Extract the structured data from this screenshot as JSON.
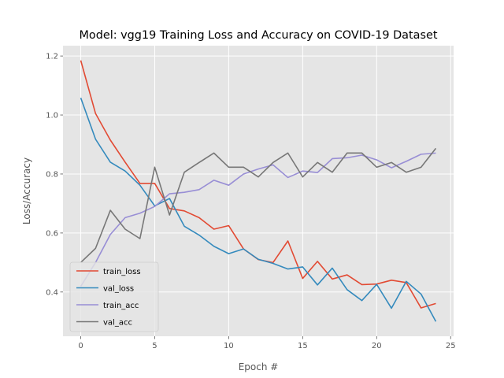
{
  "chart_data": {
    "type": "line",
    "title": "Model: vgg19 Training Loss and Accuracy on COVID-19 Dataset",
    "xlabel": "Epoch #",
    "ylabel": "Loss/Accuracy",
    "xlim": [
      -1.2,
      25.2
    ],
    "ylim": [
      0.25,
      1.235
    ],
    "xticks": [
      0,
      5,
      10,
      15,
      20,
      25
    ],
    "yticks": [
      0.4,
      0.6,
      0.8,
      1.0,
      1.2
    ],
    "ytick_labels": [
      "0.4",
      "0.6",
      "0.8",
      "1.0",
      "1.2"
    ],
    "grid": true,
    "legend_position": "lower left",
    "style": "ggplot",
    "x": [
      0,
      1,
      2,
      3,
      4,
      5,
      6,
      7,
      8,
      9,
      10,
      11,
      12,
      13,
      14,
      15,
      16,
      17,
      18,
      19,
      20,
      21,
      22,
      23,
      24
    ],
    "series": [
      {
        "name": "train_loss",
        "color": "#E24A33",
        "values": [
          1.185,
          1.005,
          0.915,
          0.84,
          0.768,
          0.768,
          0.683,
          0.675,
          0.652,
          0.613,
          0.625,
          0.546,
          0.51,
          0.5,
          0.573,
          0.446,
          0.504,
          0.444,
          0.458,
          0.425,
          0.427,
          0.44,
          0.432,
          0.346,
          0.361
        ]
      },
      {
        "name": "val_loss",
        "color": "#348ABD",
        "values": [
          1.058,
          0.918,
          0.84,
          0.81,
          0.762,
          0.692,
          0.717,
          0.623,
          0.593,
          0.555,
          0.53,
          0.546,
          0.511,
          0.497,
          0.478,
          0.485,
          0.424,
          0.481,
          0.408,
          0.371,
          0.426,
          0.345,
          0.436,
          0.393,
          0.3
        ]
      },
      {
        "name": "train_acc",
        "color": "#988ED5",
        "values": [
          0.419,
          0.5,
          0.595,
          0.652,
          0.667,
          0.69,
          0.733,
          0.738,
          0.747,
          0.779,
          0.762,
          0.8,
          0.817,
          0.831,
          0.788,
          0.81,
          0.805,
          0.852,
          0.855,
          0.864,
          0.848,
          0.821,
          0.843,
          0.867,
          0.871
        ]
      },
      {
        "name": "val_acc",
        "color": "#777777",
        "values": [
          0.5,
          0.548,
          0.677,
          0.613,
          0.581,
          0.823,
          0.661,
          0.806,
          0.839,
          0.871,
          0.823,
          0.823,
          0.79,
          0.839,
          0.871,
          0.79,
          0.839,
          0.806,
          0.871,
          0.871,
          0.823,
          0.839,
          0.806,
          0.823,
          0.887
        ]
      }
    ]
  }
}
